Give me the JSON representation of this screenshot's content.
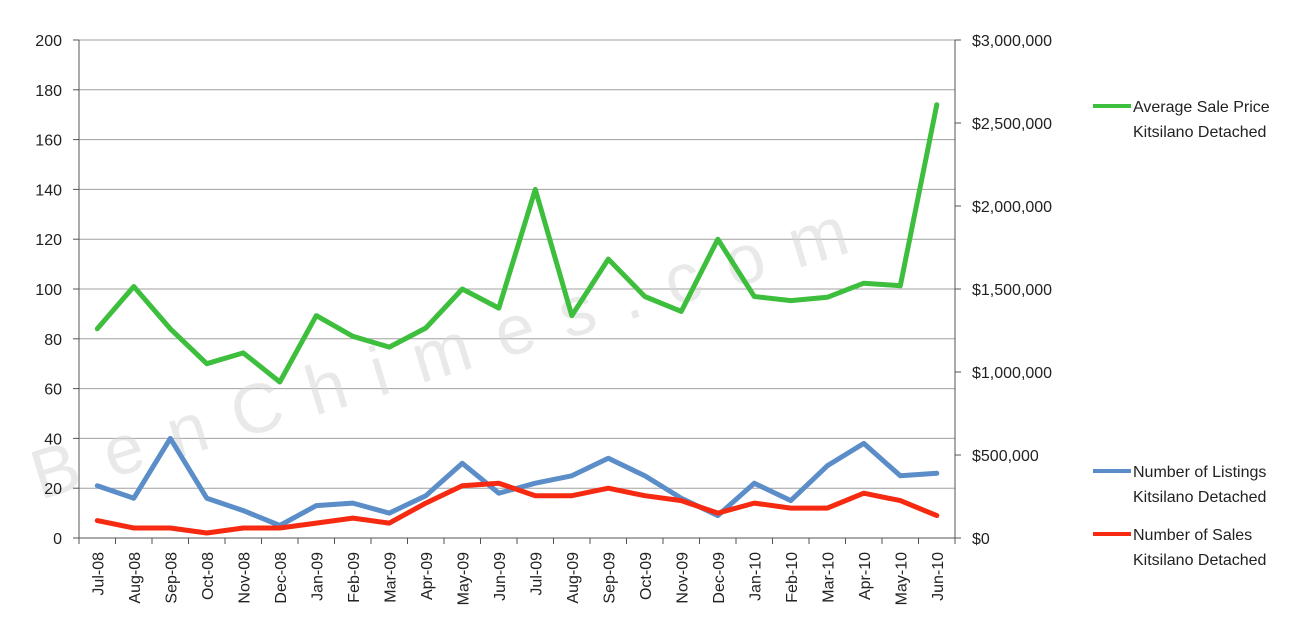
{
  "watermark": "BenChimes.com",
  "chart_data": {
    "type": "line",
    "categories": [
      "Jul-08",
      "Aug-08",
      "Sep-08",
      "Oct-08",
      "Nov-08",
      "Dec-08",
      "Jan-09",
      "Feb-09",
      "Mar-09",
      "Apr-09",
      "May-09",
      "Jun-09",
      "Jul-09",
      "Aug-09",
      "Sep-09",
      "Oct-09",
      "Nov-09",
      "Dec-09",
      "Jan-10",
      "Feb-10",
      "Mar-10",
      "Apr-10",
      "May-10",
      "Jun-10"
    ],
    "y_left": {
      "ylim": [
        0,
        200
      ],
      "ticks": [
        "0",
        "20",
        "40",
        "60",
        "80",
        "100",
        "120",
        "140",
        "160",
        "180",
        "200"
      ]
    },
    "y_right": {
      "ylim": [
        0,
        3000000
      ],
      "ticks": [
        "$0",
        "$500,000",
        "$1,000,000",
        "$1,500,000",
        "$2,000,000",
        "$2,500,000",
        "$3,000,000"
      ]
    },
    "grid": true,
    "series": [
      {
        "name_lines": [
          "Average Sale Price",
          "Kitsilano Detached"
        ],
        "axis": "right",
        "color": "#3dbf3d",
        "values": [
          1260000,
          1515000,
          1260000,
          1050000,
          1115000,
          940000,
          1340000,
          1215000,
          1150000,
          1265000,
          1500000,
          1385000,
          2100000,
          1340000,
          1680000,
          1455000,
          1365000,
          1800000,
          1455000,
          1430000,
          1450000,
          1535000,
          1520000,
          2610000
        ]
      },
      {
        "name_lines": [
          "Number of Listings",
          "Kitsilano Detached"
        ],
        "axis": "left",
        "color": "#5b8ec8",
        "values": [
          21,
          16,
          40,
          16,
          11,
          5,
          13,
          14,
          10,
          17,
          30,
          18,
          22,
          25,
          32,
          25,
          16,
          9,
          22,
          15,
          29,
          38,
          25,
          26
        ]
      },
      {
        "name_lines": [
          "Number of Sales",
          "Kitsilano Detached"
        ],
        "axis": "left",
        "color": "#f52a10",
        "values": [
          7,
          4,
          4,
          2,
          4,
          4,
          6,
          8,
          6,
          14,
          21,
          22,
          17,
          17,
          20,
          17,
          15,
          10,
          14,
          12,
          12,
          18,
          15,
          9
        ]
      }
    ]
  }
}
